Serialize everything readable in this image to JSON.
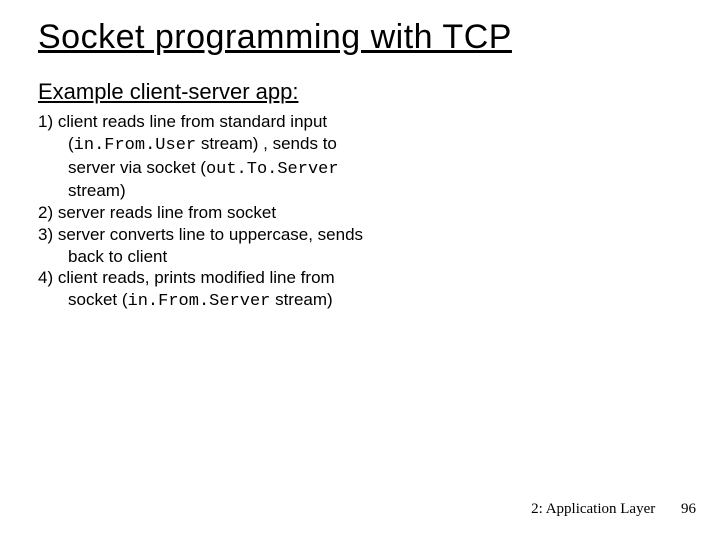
{
  "title": "Socket programming with TCP",
  "subhead": "Example client-server app:",
  "items": {
    "i1a": "1) client reads line from standard input (",
    "i1code1": "in.From.User",
    "i1b": " stream) , sends to server via socket (",
    "i1code2": "out.To.Server",
    "i1c": " stream)",
    "i2": "2) server reads line from socket",
    "i3": "3) server converts line to uppercase, sends back to client",
    "i4a": "4) client reads, prints  modified line from socket (",
    "i4code": "in.From.Server",
    "i4b": " stream)"
  },
  "footer": {
    "text": "2: Application Layer",
    "num": "96"
  },
  "colors": {
    "background": "#ffffff",
    "text": "#000000"
  },
  "fonts": {
    "body": "Comic Sans MS",
    "code": "Courier New",
    "footer": "Georgia"
  }
}
